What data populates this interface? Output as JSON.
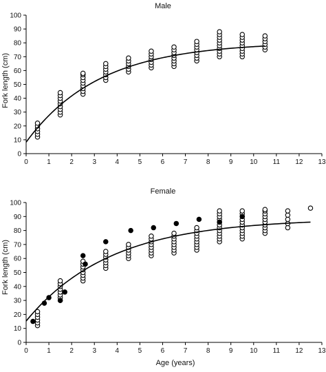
{
  "chart_data": [
    {
      "type": "scatter",
      "title": "Male",
      "xlabel": "",
      "ylabel": "Fork length (cm)",
      "xlim": [
        0,
        13
      ],
      "ylim": [
        0,
        100
      ],
      "x_ticks": [
        0,
        1,
        2,
        3,
        4,
        5,
        6,
        7,
        8,
        9,
        10,
        11,
        12,
        13
      ],
      "y_ticks": [
        0,
        10,
        20,
        30,
        40,
        50,
        60,
        70,
        80,
        90,
        100
      ],
      "grid": false,
      "series": [
        {
          "marker": "open-circle",
          "groups": [
            {
              "x": 0.5,
              "values": [
                12,
                14,
                16,
                18,
                20,
                22
              ]
            },
            {
              "x": 1.5,
              "values": [
                28,
                30,
                32,
                34,
                36,
                38,
                40,
                42,
                44
              ]
            },
            {
              "x": 2.5,
              "values": [
                43,
                45,
                47,
                49,
                51,
                53,
                55,
                57,
                58
              ]
            },
            {
              "x": 3.5,
              "values": [
                53,
                55,
                57,
                59,
                61,
                63,
                65
              ]
            },
            {
              "x": 4.5,
              "values": [
                59,
                61,
                63,
                65,
                67,
                69
              ]
            },
            {
              "x": 5.5,
              "values": [
                62,
                64,
                66,
                68,
                70,
                72,
                74
              ]
            },
            {
              "x": 6.5,
              "values": [
                63,
                65,
                67,
                69,
                71,
                73,
                75,
                77
              ]
            },
            {
              "x": 7.5,
              "values": [
                67,
                69,
                71,
                73,
                75,
                77,
                79,
                81
              ]
            },
            {
              "x": 8.5,
              "values": [
                70,
                72,
                74,
                76,
                78,
                80,
                82,
                84,
                86,
                88
              ]
            },
            {
              "x": 9.5,
              "values": [
                70,
                72,
                74,
                76,
                78,
                80,
                82,
                84,
                86
              ]
            },
            {
              "x": 10.5,
              "values": [
                75,
                77,
                79,
                81,
                83,
                85
              ]
            }
          ]
        }
      ],
      "fit_curve": {
        "type": "von-bertalanffy",
        "x_range": [
          0,
          10.5
        ],
        "Linf": 80.5,
        "K": 0.31,
        "t0": -0.35
      }
    },
    {
      "type": "scatter",
      "title": "Female",
      "xlabel": "Age (years)",
      "ylabel": "Fork length (cm)",
      "xlim": [
        0,
        13
      ],
      "ylim": [
        0,
        100
      ],
      "x_ticks": [
        0,
        1,
        2,
        3,
        4,
        5,
        6,
        7,
        8,
        9,
        10,
        11,
        12,
        13
      ],
      "y_ticks": [
        0,
        10,
        20,
        30,
        40,
        50,
        60,
        70,
        80,
        90,
        100
      ],
      "grid": false,
      "series": [
        {
          "marker": "open-circle",
          "groups": [
            {
              "x": 0.5,
              "values": [
                12,
                14,
                16,
                18,
                20,
                22
              ]
            },
            {
              "x": 1.5,
              "values": [
                30,
                32,
                34,
                36,
                38,
                40,
                42,
                44
              ]
            },
            {
              "x": 2.5,
              "values": [
                44,
                46,
                48,
                50,
                52,
                54,
                56,
                58
              ]
            },
            {
              "x": 3.5,
              "values": [
                53,
                55,
                57,
                59,
                61,
                63,
                65
              ]
            },
            {
              "x": 4.5,
              "values": [
                60,
                62,
                64,
                66,
                68,
                70
              ]
            },
            {
              "x": 5.5,
              "values": [
                62,
                64,
                66,
                68,
                70,
                72,
                74,
                76
              ]
            },
            {
              "x": 6.5,
              "values": [
                64,
                66,
                68,
                70,
                72,
                74,
                76,
                78
              ]
            },
            {
              "x": 7.5,
              "values": [
                66,
                68,
                70,
                72,
                74,
                76,
                78,
                80,
                82
              ]
            },
            {
              "x": 8.5,
              "values": [
                72,
                74,
                76,
                78,
                80,
                82,
                84,
                86,
                88,
                90,
                92,
                94
              ]
            },
            {
              "x": 9.5,
              "values": [
                74,
                76,
                78,
                80,
                82,
                84,
                86,
                88,
                90,
                92,
                94
              ]
            },
            {
              "x": 10.5,
              "values": [
                78,
                80,
                82,
                84,
                86,
                88,
                90,
                92,
                94,
                95
              ]
            },
            {
              "x": 11.5,
              "values": [
                82,
                85,
                88,
                91,
                94
              ]
            },
            {
              "x": 12.5,
              "values": [
                96
              ]
            }
          ]
        },
        {
          "marker": "filled-circle",
          "points": [
            {
              "x": 0.3,
              "y": 15
            },
            {
              "x": 0.8,
              "y": 28
            },
            {
              "x": 1.0,
              "y": 32
            },
            {
              "x": 1.5,
              "y": 30
            },
            {
              "x": 1.7,
              "y": 36
            },
            {
              "x": 2.5,
              "y": 62
            },
            {
              "x": 2.6,
              "y": 56
            },
            {
              "x": 3.5,
              "y": 72
            },
            {
              "x": 4.6,
              "y": 80
            },
            {
              "x": 5.6,
              "y": 82
            },
            {
              "x": 6.6,
              "y": 85
            },
            {
              "x": 7.6,
              "y": 88
            },
            {
              "x": 8.5,
              "y": 86
            },
            {
              "x": 9.5,
              "y": 90
            }
          ]
        }
      ],
      "fit_curve": {
        "type": "von-bertalanffy",
        "x_range": [
          0,
          12.5
        ],
        "Linf": 88.5,
        "K": 0.27,
        "t0": -0.7
      }
    }
  ]
}
